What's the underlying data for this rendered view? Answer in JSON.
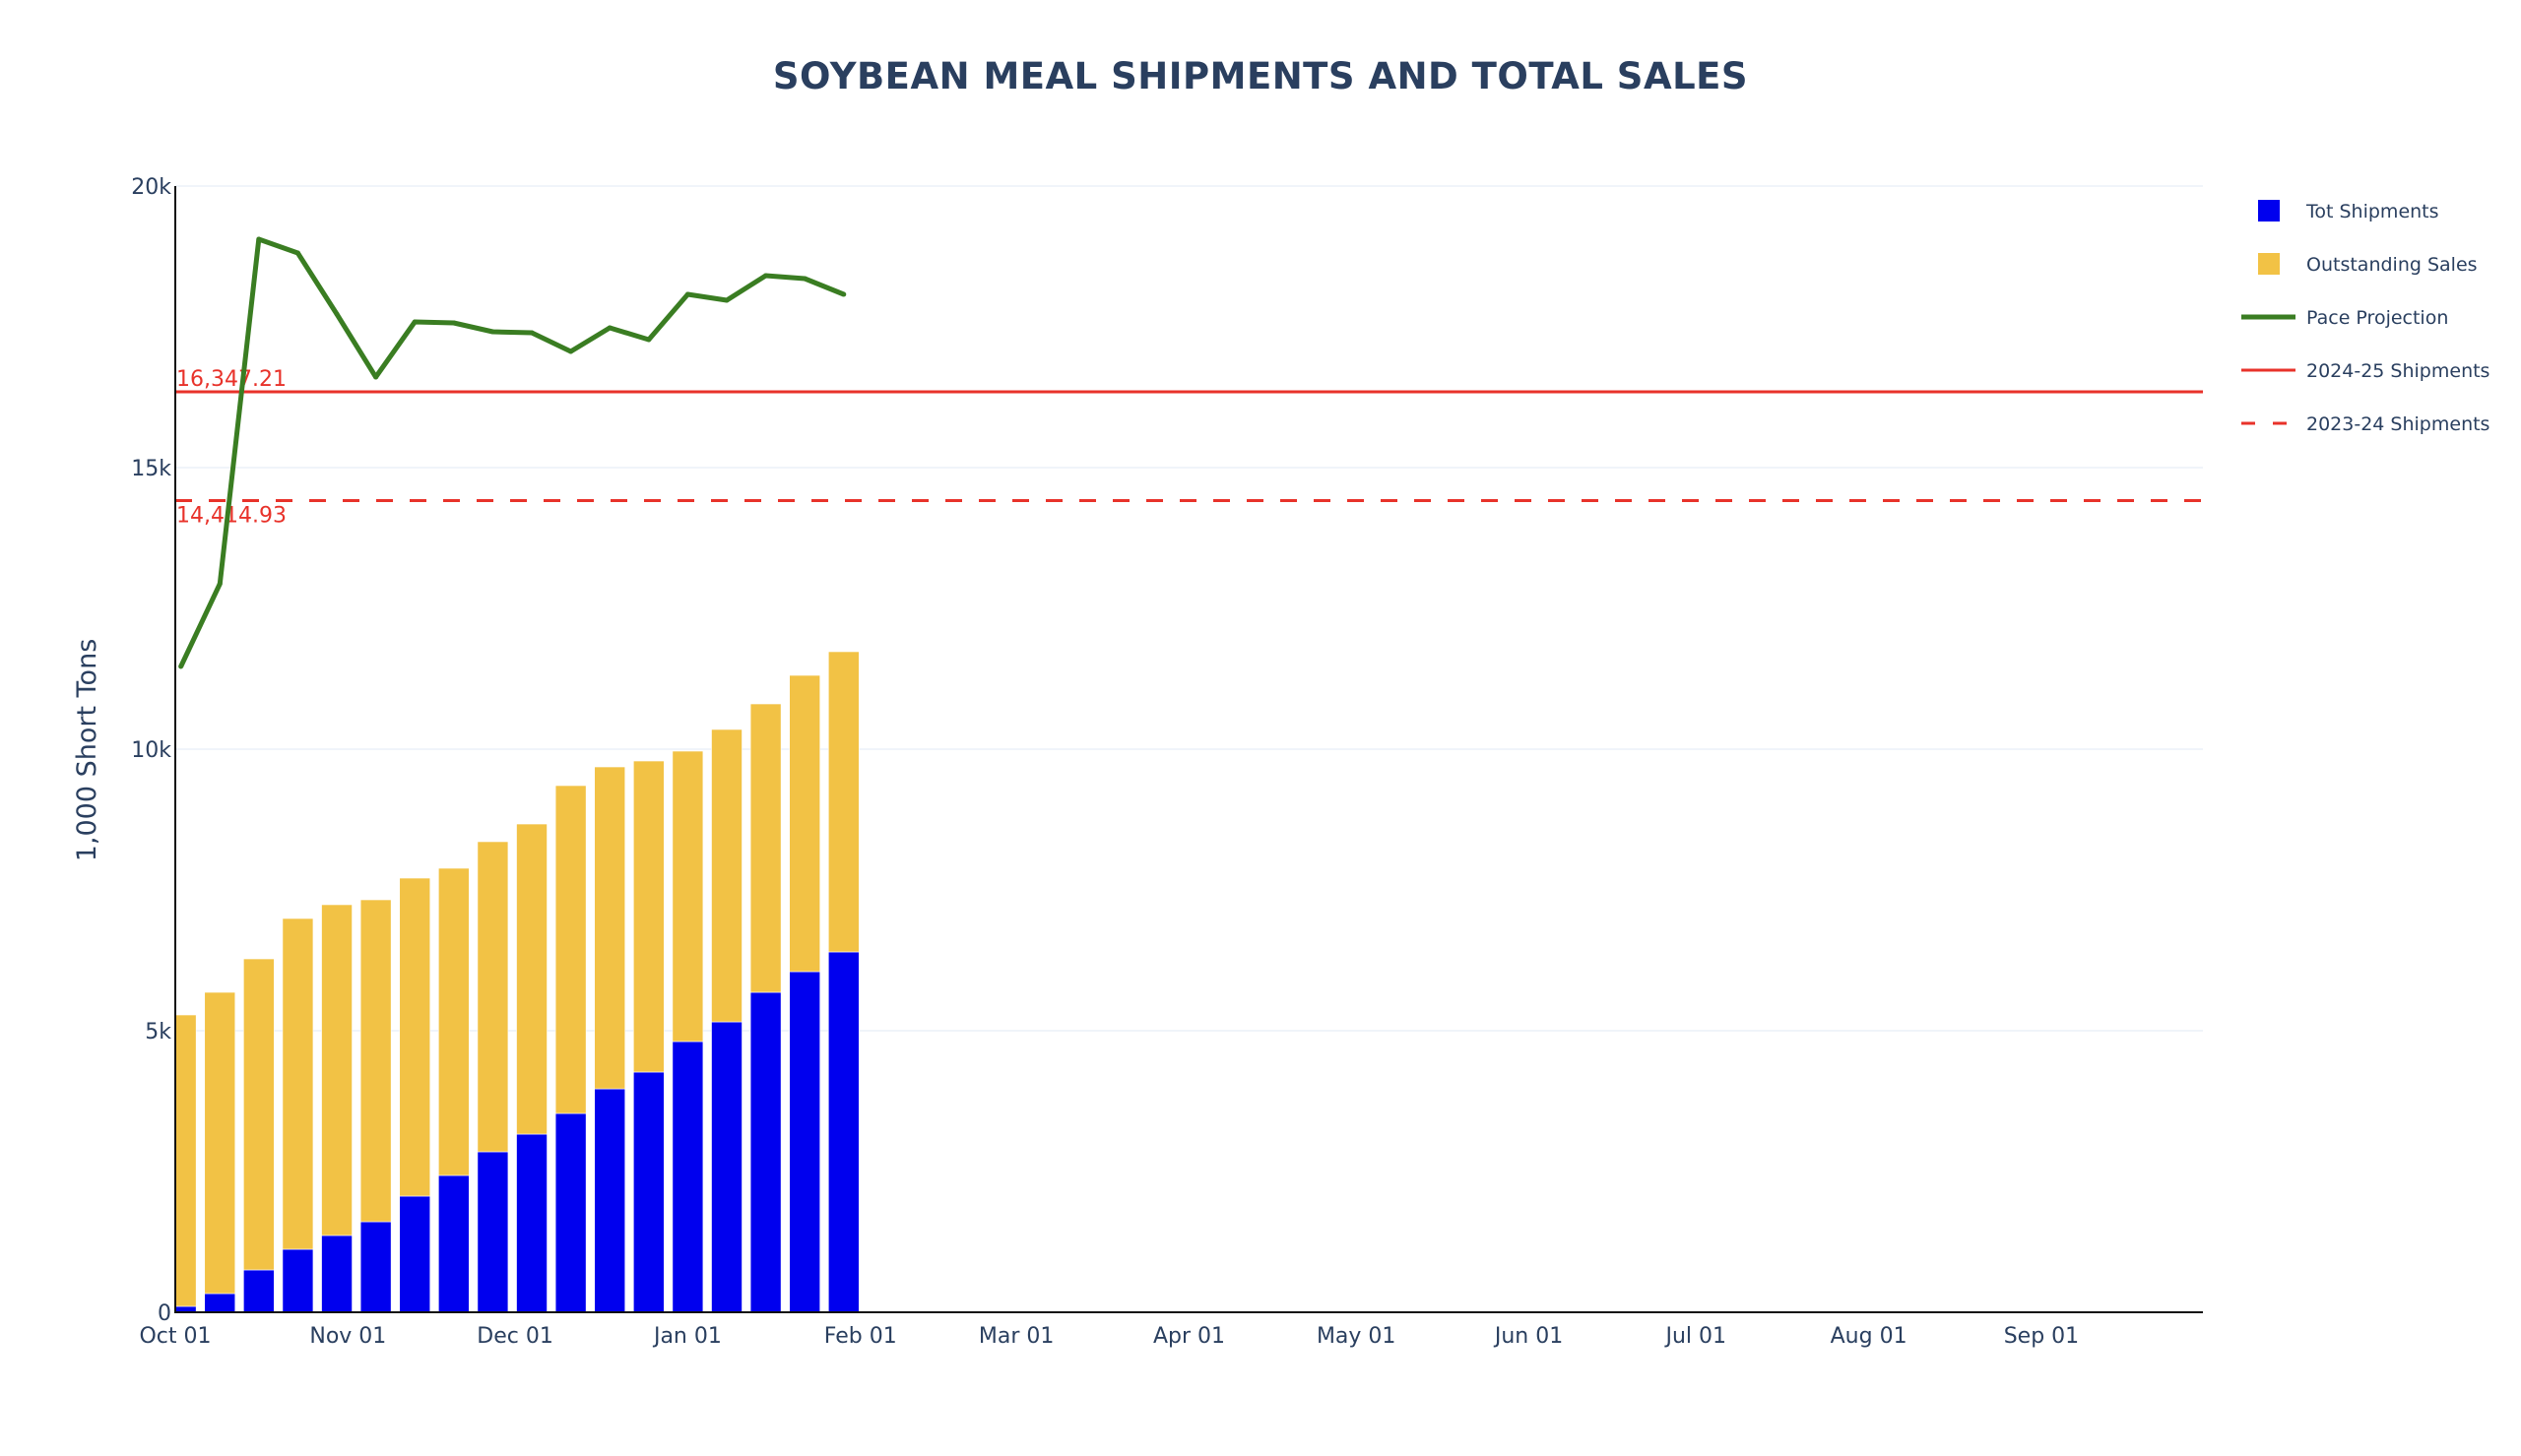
{
  "chart_data": {
    "type": "bar",
    "title": "SOYBEAN MEAL SHIPMENTS AND TOTAL SALES",
    "xlabel": "",
    "ylabel": "1,000 Short Tons",
    "xlim": [
      "2024-10-01",
      "2025-09-30"
    ],
    "ylim": [
      0,
      20000
    ],
    "grid": true,
    "barmode": "stack",
    "legend_position": "right",
    "x_ticks": [
      "Oct 01",
      "Nov 01",
      "Dec 01",
      "Jan 01",
      "Feb 01",
      "Mar 01",
      "Apr 01",
      "May 01",
      "Jun 01",
      "Jul 01",
      "Aug 01",
      "Sep 01"
    ],
    "x_tick_dates": [
      "2024-10-01",
      "2024-11-01",
      "2024-12-01",
      "2025-01-01",
      "2025-02-01",
      "2025-03-01",
      "2025-04-01",
      "2025-05-01",
      "2025-06-01",
      "2025-07-01",
      "2025-08-01",
      "2025-09-01"
    ],
    "y_ticks": [
      0,
      5000,
      10000,
      15000,
      20000
    ],
    "y_tick_labels": [
      "0",
      "5k",
      "10k",
      "15k",
      "20k"
    ],
    "x": [
      "2024-10-02",
      "2024-10-09",
      "2024-10-16",
      "2024-10-23",
      "2024-10-30",
      "2024-11-06",
      "2024-11-13",
      "2024-11-20",
      "2024-11-27",
      "2024-12-04",
      "2024-12-11",
      "2024-12-18",
      "2024-12-25",
      "2025-01-01",
      "2025-01-08",
      "2025-01-15",
      "2025-01-22",
      "2025-01-29"
    ],
    "series": [
      {
        "name": "Tot Shipments",
        "kind": "bar",
        "color": "#0000ee",
        "values": [
          105,
          332,
          752,
          1119,
          1364,
          1608,
          2063,
          2430,
          2850,
          3164,
          3531,
          3968,
          4266,
          4808,
          5157,
          5682,
          6049,
          6399
        ]
      },
      {
        "name": "Outstanding Sales",
        "kind": "bar",
        "color": "#f2c245",
        "values": [
          5175,
          5350,
          5524,
          5874,
          5874,
          5717,
          5647,
          5455,
          5507,
          5507,
          5822,
          5717,
          5524,
          5157,
          5193,
          5122,
          5262,
          5332
        ]
      },
      {
        "name": "Pace Projection",
        "kind": "line",
        "color": "#3a7d22",
        "values": [
          11469,
          12937,
          19056,
          18811,
          17727,
          16608,
          17587,
          17570,
          17412,
          17395,
          17063,
          17482,
          17273,
          18077,
          17972,
          18409,
          18357,
          18077
        ]
      },
      {
        "name": "2024-25 Shipments",
        "kind": "hline",
        "color": "#e8322a",
        "dash": "solid",
        "value": 16347.21
      },
      {
        "name": "2023-24 Shipments",
        "kind": "hline",
        "color": "#e8322a",
        "dash": "dash",
        "value": 14414.93
      }
    ],
    "annotations": [
      {
        "text": "16,347.21",
        "y": 16347.21,
        "position": "above-left"
      },
      {
        "text": "14,414.93",
        "y": 14414.93,
        "position": "below-left"
      }
    ]
  }
}
